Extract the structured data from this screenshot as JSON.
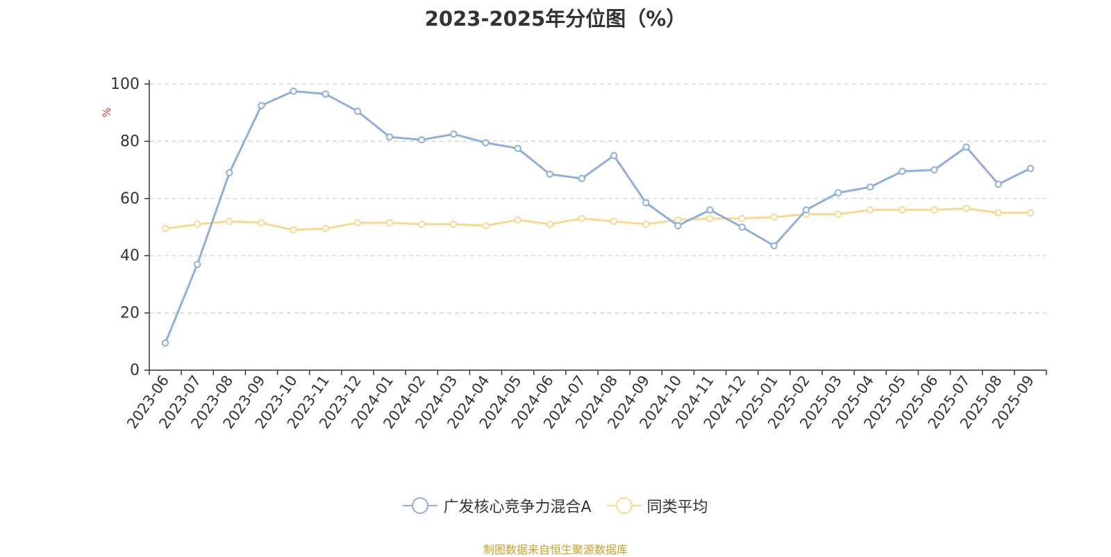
{
  "chart_data": {
    "type": "line",
    "title": "2023-2025年分位图（%）",
    "ylabel": "%",
    "ylim": [
      0,
      100
    ],
    "yticks": [
      0,
      20,
      40,
      60,
      80,
      100
    ],
    "grid": true,
    "legend_position": "bottom",
    "categories": [
      "2023-06",
      "2023-07",
      "2023-08",
      "2023-09",
      "2023-10",
      "2023-11",
      "2023-12",
      "2024-01",
      "2024-02",
      "2024-03",
      "2024-04",
      "2024-05",
      "2024-06",
      "2024-07",
      "2024-08",
      "2024-09",
      "2024-10",
      "2024-11",
      "2024-12",
      "2025-01",
      "2025-02",
      "2025-03",
      "2025-04",
      "2025-05",
      "2025-06",
      "2025-07",
      "2025-08",
      "2025-09"
    ],
    "series": [
      {
        "name": "广发核心竞争力混合A",
        "color": "#8eaedb",
        "values": [
          9.5,
          37,
          69,
          92.5,
          97.5,
          96.5,
          90.5,
          81.5,
          80.5,
          82.5,
          79.5,
          77.5,
          68.5,
          67,
          75,
          58.5,
          50.5,
          56,
          50,
          43.5,
          56,
          62,
          64,
          69.5,
          70,
          78,
          65,
          70.5
        ]
      },
      {
        "name": "同类平均",
        "color": "#fbd88f",
        "values": [
          49.5,
          51,
          52,
          51.5,
          49,
          49.5,
          51.5,
          51.5,
          51,
          51,
          50.5,
          52.5,
          51,
          53,
          52,
          51,
          52.5,
          53,
          53,
          53.5,
          54.5,
          54.5,
          56,
          56,
          56,
          56.5,
          55,
          55
        ]
      }
    ]
  },
  "source": "制图数据来自恒生聚源数据库"
}
